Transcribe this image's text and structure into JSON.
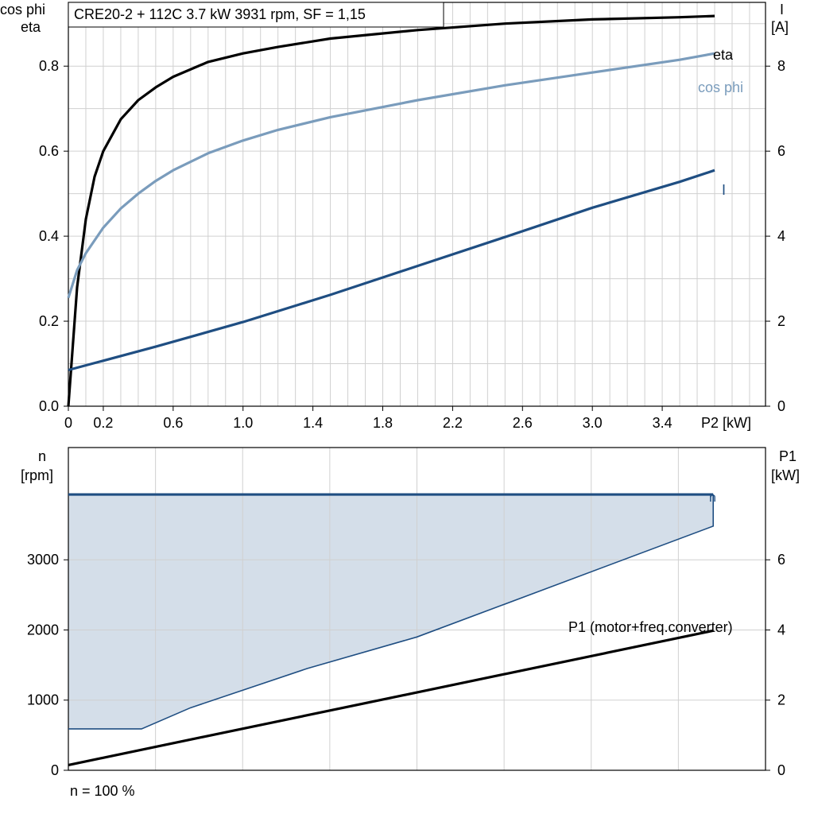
{
  "title_box": "CRE20-2 + 112C   3.7 kW   3931 rpm, SF = 1,15",
  "footer_note": "n = 100 %",
  "colors": {
    "eta": "#000000",
    "cos_phi": "#7a9cbc",
    "current": "#1f4e82",
    "speed_line": "#1f4e82",
    "speed_fill": "#d4dee9",
    "p1": "#000000",
    "grid": "#d0d0d0"
  },
  "chart_data": [
    {
      "type": "line",
      "xlabel": "P2 [kW]",
      "ylabel_left": [
        "cos phi",
        "eta"
      ],
      "ylabel_right": [
        "I",
        "[A]"
      ],
      "xlim": [
        0,
        3.7
      ],
      "ylim_left": [
        0,
        0.95
      ],
      "ylim_right": [
        0,
        9.5
      ],
      "x_ticks": [
        "0",
        "0.2",
        "0.6",
        "1.0",
        "1.4",
        "1.8",
        "2.2",
        "2.6",
        "3.0",
        "3.4"
      ],
      "x_tick_values": [
        0,
        0.2,
        0.6,
        1.0,
        1.4,
        1.8,
        2.2,
        2.6,
        3.0,
        3.4
      ],
      "y_left_ticks": [
        "0.0",
        "0.2",
        "0.4",
        "0.6",
        "0.8"
      ],
      "y_left_tick_values": [
        0,
        0.2,
        0.4,
        0.6,
        0.8
      ],
      "y_right_ticks": [
        "0",
        "2",
        "4",
        "6",
        "8"
      ],
      "y_right_tick_values": [
        0,
        2,
        4,
        6,
        8
      ],
      "grid": true,
      "series": [
        {
          "name": "eta",
          "axis": "left",
          "x": [
            0,
            0.05,
            0.1,
            0.15,
            0.2,
            0.3,
            0.4,
            0.5,
            0.6,
            0.8,
            1.0,
            1.2,
            1.5,
            2.0,
            2.5,
            3.0,
            3.5,
            3.7
          ],
          "y": [
            0,
            0.28,
            0.44,
            0.54,
            0.6,
            0.675,
            0.72,
            0.75,
            0.775,
            0.81,
            0.83,
            0.845,
            0.865,
            0.885,
            0.9,
            0.91,
            0.915,
            0.918
          ]
        },
        {
          "name": "cos phi",
          "axis": "left",
          "x": [
            0,
            0.05,
            0.1,
            0.2,
            0.3,
            0.4,
            0.5,
            0.6,
            0.8,
            1.0,
            1.2,
            1.5,
            2.0,
            2.5,
            3.0,
            3.5,
            3.7
          ],
          "y": [
            0.255,
            0.32,
            0.36,
            0.42,
            0.465,
            0.5,
            0.53,
            0.555,
            0.595,
            0.625,
            0.65,
            0.68,
            0.72,
            0.755,
            0.785,
            0.815,
            0.83
          ]
        },
        {
          "name": "I",
          "axis": "right",
          "x": [
            0,
            0.5,
            1.0,
            1.5,
            2.0,
            2.5,
            3.0,
            3.5,
            3.7
          ],
          "y": [
            0.85,
            1.4,
            1.98,
            2.62,
            3.3,
            3.98,
            4.67,
            5.28,
            5.55
          ]
        }
      ]
    },
    {
      "type": "area",
      "ylabel_left": [
        "n",
        "[rpm]"
      ],
      "ylabel_right": [
        "P1",
        "[kW]"
      ],
      "xlim": [
        0,
        4.0
      ],
      "ylim_left": [
        0,
        4600
      ],
      "ylim_right": [
        0,
        9.2
      ],
      "y_left_ticks": [
        "0",
        "1000",
        "2000",
        "3000"
      ],
      "y_left_tick_values": [
        0,
        1000,
        2000,
        3000
      ],
      "y_right_ticks": [
        "0",
        "2",
        "4",
        "6"
      ],
      "y_right_tick_values": [
        0,
        2,
        4,
        6
      ],
      "grid": true,
      "series": [
        {
          "name": "n",
          "axis": "left",
          "x": [
            0,
            3.7
          ],
          "y": [
            3931,
            3931
          ]
        },
        {
          "name": "",
          "axis": "left",
          "role": "lower_boundary",
          "x": [
            0,
            0.42,
            0.7,
            1.37,
            2.0,
            3.7,
            3.7
          ],
          "y": [
            590,
            590,
            890,
            1450,
            1900,
            3480,
            3931
          ]
        },
        {
          "name": "P1 (motor+freq.converter)",
          "axis": "right",
          "x": [
            0,
            3.7
          ],
          "y": [
            0.15,
            3.98
          ]
        }
      ]
    }
  ]
}
